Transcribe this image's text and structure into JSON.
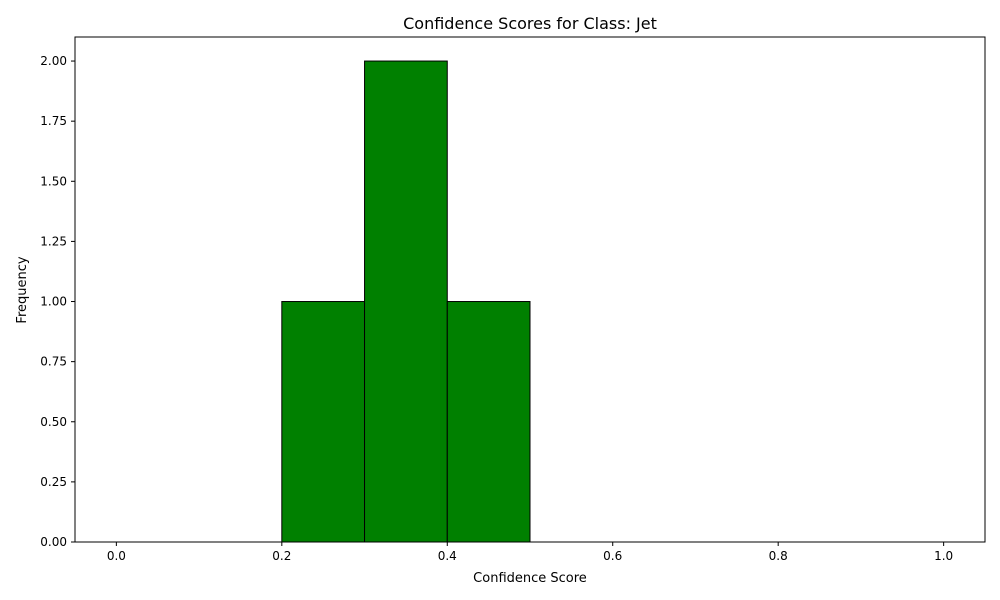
{
  "chart_data": {
    "type": "bar",
    "title": "Confidence Scores for Class: Jet",
    "xlabel": "Confidence Score",
    "ylabel": "Frequency",
    "xlim": [
      -0.05,
      1.05
    ],
    "ylim": [
      0,
      2.1
    ],
    "bar_color": "#008000",
    "edge_color": "#000000",
    "bins": [
      {
        "start": 0.0,
        "end": 0.1,
        "value": 0
      },
      {
        "start": 0.1,
        "end": 0.2,
        "value": 0
      },
      {
        "start": 0.2,
        "end": 0.3,
        "value": 1
      },
      {
        "start": 0.3,
        "end": 0.4,
        "value": 2
      },
      {
        "start": 0.4,
        "end": 0.5,
        "value": 1
      },
      {
        "start": 0.5,
        "end": 0.6,
        "value": 0
      },
      {
        "start": 0.6,
        "end": 0.7,
        "value": 0
      },
      {
        "start": 0.7,
        "end": 0.8,
        "value": 0
      },
      {
        "start": 0.8,
        "end": 0.9,
        "value": 0
      },
      {
        "start": 0.9,
        "end": 1.0,
        "value": 0
      }
    ],
    "x_ticks": [
      {
        "value": 0.0,
        "label": "0.0"
      },
      {
        "value": 0.2,
        "label": "0.2"
      },
      {
        "value": 0.4,
        "label": "0.4"
      },
      {
        "value": 0.6,
        "label": "0.6"
      },
      {
        "value": 0.8,
        "label": "0.8"
      },
      {
        "value": 1.0,
        "label": "1.0"
      }
    ],
    "y_ticks": [
      {
        "value": 0.0,
        "label": "0.00"
      },
      {
        "value": 0.25,
        "label": "0.25"
      },
      {
        "value": 0.5,
        "label": "0.50"
      },
      {
        "value": 0.75,
        "label": "0.75"
      },
      {
        "value": 1.0,
        "label": "1.00"
      },
      {
        "value": 1.25,
        "label": "1.25"
      },
      {
        "value": 1.5,
        "label": "1.50"
      },
      {
        "value": 1.75,
        "label": "1.75"
      },
      {
        "value": 2.0,
        "label": "2.00"
      }
    ],
    "grid": false,
    "legend": "none"
  }
}
